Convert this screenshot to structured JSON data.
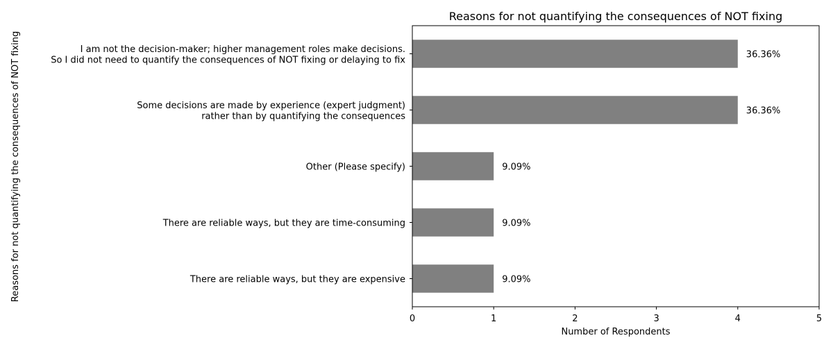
{
  "chart_data": {
    "type": "bar",
    "orientation": "horizontal",
    "title": "Reasons for not quantifying the consequences of NOT fixing",
    "xlabel": "Number of Respondents",
    "ylabel": "Reasons for not quantifying the consequences of NOT fixing",
    "xlim": [
      0,
      5
    ],
    "xticks": [
      "0",
      "1",
      "2",
      "3",
      "4",
      "5"
    ],
    "grid": false,
    "bar_color": "#808080",
    "categories": [
      [
        "I am not the decision-maker; higher management roles make decisions.",
        "So I did not need to quantify the consequences of NOT fixing or delaying to fix"
      ],
      [
        "Some decisions are made by experience (expert judgment)",
        "rather than by quantifying the consequences"
      ],
      [
        "Other (Please specify)"
      ],
      [
        "There are reliable ways, but they are time-consuming"
      ],
      [
        "There are reliable ways, but they are expensive"
      ]
    ],
    "values": [
      4,
      4,
      1,
      1,
      1
    ],
    "data_labels": [
      "36.36%",
      "36.36%",
      "9.09%",
      "9.09%",
      "9.09%"
    ]
  }
}
